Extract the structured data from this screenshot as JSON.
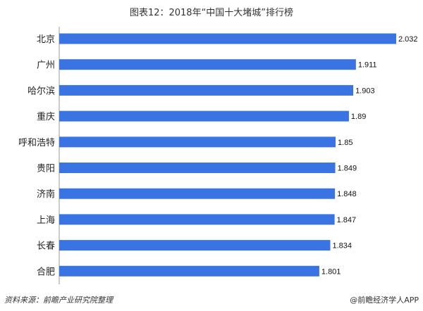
{
  "colors": {
    "bar": "#3a74e3",
    "axis": "#999999"
  },
  "footer": {
    "source": "资料来源：前瞻产业研究院整理",
    "brand": "@前瞻经济学人APP"
  },
  "chart_data": {
    "type": "bar",
    "orientation": "horizontal",
    "title": "图表12：2018年“中国十大堵城”排行榜",
    "categories": [
      "北京",
      "广州",
      "哈尔滨",
      "重庆",
      "呼和浩特",
      "贵阳",
      "济南",
      "上海",
      "长春",
      "合肥"
    ],
    "values": [
      2.032,
      1.911,
      1.903,
      1.89,
      1.85,
      1.849,
      1.848,
      1.847,
      1.834,
      1.801
    ],
    "value_labels": [
      "2.032",
      "1.911",
      "1.903",
      "1.89",
      "1.85",
      "1.849",
      "1.848",
      "1.847",
      "1.834",
      "1.801"
    ],
    "xlim": [
      1.02,
      2.032
    ],
    "grid": false,
    "legend": "none"
  }
}
